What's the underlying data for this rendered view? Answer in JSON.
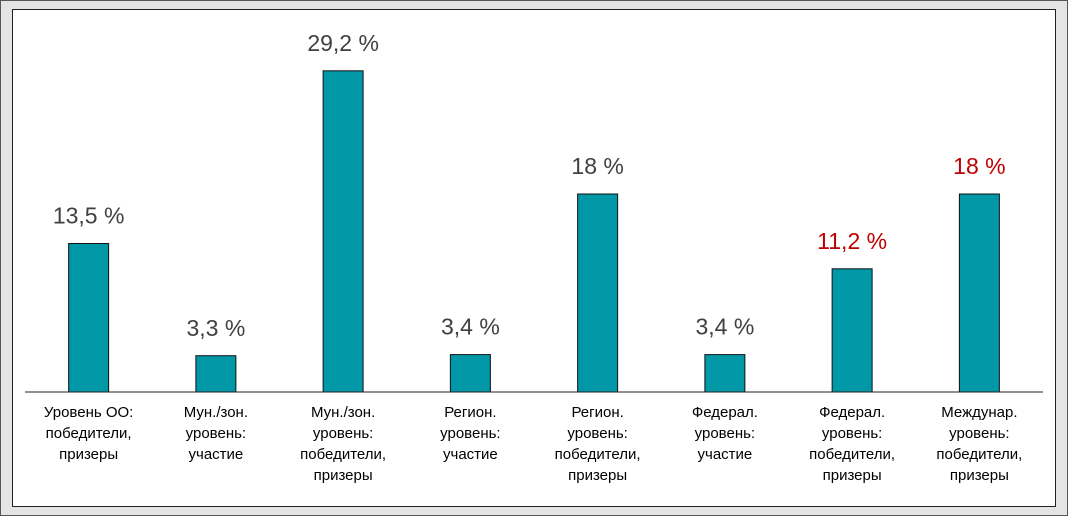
{
  "chart_data": {
    "type": "bar",
    "categories": [
      [
        "Уровень ОО:",
        "победители,",
        "призеры"
      ],
      [
        "Мун./зон.",
        "уровень:",
        "участие"
      ],
      [
        "Мун./зон.",
        "уровень:",
        "победители,",
        "призеры"
      ],
      [
        "Регион.",
        "уровень:",
        "участие"
      ],
      [
        "Регион.",
        "уровень:",
        "победители,",
        "призеры"
      ],
      [
        "Федерал.",
        "уровень:",
        "участие"
      ],
      [
        "Федерал.",
        "уровень:",
        "победители,",
        "призеры"
      ],
      [
        "Междунар.",
        "уровень:",
        "победители,",
        "призеры"
      ]
    ],
    "values": [
      13.5,
      3.3,
      29.2,
      3.4,
      18,
      3.4,
      11.2,
      18
    ],
    "value_labels": [
      "13,5 %",
      "3,3 %",
      "29,2 %",
      "3,4 %",
      "18 %",
      "3,4 %",
      "11,2 %",
      "18 %"
    ],
    "value_label_colors": [
      "#404040",
      "#404040",
      "#404040",
      "#404040",
      "#404040",
      "#404040",
      "#c00000",
      "#c00000"
    ],
    "color": "#0097a7",
    "ylim": [
      0,
      30
    ]
  }
}
